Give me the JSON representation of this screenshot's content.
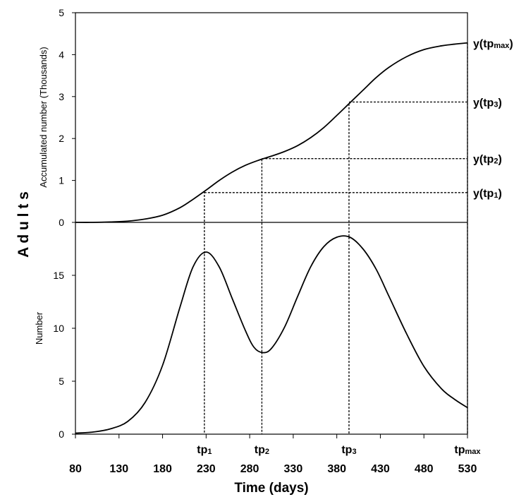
{
  "chart_data": [
    {
      "type": "line",
      "panel": "top",
      "ylabel": "Accumulated number (Thousands)",
      "ylim": [
        0,
        5
      ],
      "yticks": [
        "0",
        "1",
        "2",
        "3",
        "4",
        "5"
      ],
      "xlim": [
        80,
        530
      ],
      "series": [
        {
          "x": [
            80,
            100,
            120,
            140,
            160,
            180,
            200,
            215,
            230,
            245,
            260,
            275,
            290,
            305,
            320,
            335,
            350,
            365,
            380,
            395,
            410,
            425,
            440,
            460,
            480,
            500,
            515,
            530
          ],
          "y": [
            0.0,
            0.0,
            0.01,
            0.03,
            0.08,
            0.17,
            0.35,
            0.55,
            0.77,
            1.0,
            1.2,
            1.36,
            1.48,
            1.58,
            1.69,
            1.83,
            2.02,
            2.26,
            2.55,
            2.85,
            3.15,
            3.45,
            3.7,
            3.95,
            4.12,
            4.21,
            4.25,
            4.28
          ]
        }
      ],
      "annotations": [
        {
          "base": "y(tp",
          "sub": "1",
          "close": ")",
          "y": 0.71
        },
        {
          "base": "y(tp",
          "sub": "2",
          "close": ")",
          "y": 1.52
        },
        {
          "base": "y(tp",
          "sub": "3",
          "close": ")",
          "y": 2.87
        },
        {
          "base": "y(tp",
          "sub": "max",
          "close": ")",
          "y": 4.28
        }
      ]
    },
    {
      "type": "line",
      "panel": "bottom",
      "ylabel": "Number",
      "ylim": [
        0,
        20
      ],
      "yticks": [
        "0",
        "5",
        "10",
        "15"
      ],
      "xlim": [
        80,
        530
      ],
      "series": [
        {
          "x": [
            80,
            100,
            120,
            140,
            160,
            180,
            200,
            215,
            230,
            245,
            260,
            275,
            285,
            295,
            305,
            320,
            335,
            350,
            365,
            380,
            395,
            410,
            425,
            440,
            460,
            480,
            500,
            515,
            530
          ],
          "y": [
            0.1,
            0.2,
            0.5,
            1.2,
            3.0,
            6.5,
            12.0,
            15.8,
            17.2,
            15.8,
            12.8,
            9.8,
            8.2,
            7.7,
            8.1,
            10.1,
            13.0,
            15.8,
            17.7,
            18.6,
            18.6,
            17.5,
            15.6,
            13.0,
            9.5,
            6.4,
            4.3,
            3.3,
            2.5
          ]
        }
      ]
    }
  ],
  "x_axis": {
    "title": "Time (days)",
    "ticks": [
      "80",
      "130",
      "180",
      "230",
      "280",
      "330",
      "380",
      "430",
      "480",
      "530"
    ],
    "tick_values": [
      80,
      130,
      180,
      230,
      280,
      330,
      380,
      430,
      480,
      530
    ]
  },
  "turning_points": [
    {
      "base": "tp",
      "sub": "1",
      "x": 228
    },
    {
      "base": "tp",
      "sub": "2",
      "x": 294
    },
    {
      "base": "tp",
      "sub": "3",
      "x": 394
    },
    {
      "base": "tp",
      "sub": "max",
      "x": 530
    }
  ],
  "side_title": "A d u l t s"
}
